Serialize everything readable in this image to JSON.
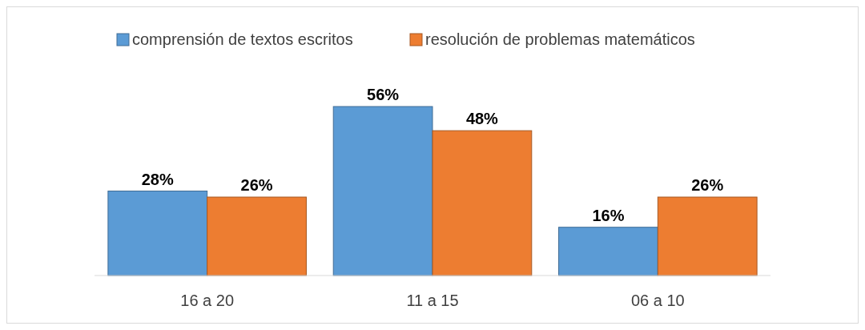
{
  "chart_data": {
    "type": "bar",
    "categories": [
      "16 a 20",
      "11 a 15",
      "06 a 10"
    ],
    "legend": "top",
    "series": [
      {
        "name": "comprensión de textos escritos",
        "color": "#5b9bd5",
        "values": [
          28,
          56,
          16
        ],
        "value_labels": [
          "28%",
          "56%",
          "16%"
        ]
      },
      {
        "name": "resolución de problemas matemáticos",
        "color": "#ed7d31",
        "values": [
          26,
          48,
          26
        ],
        "value_labels": [
          "26%",
          "48%",
          "26%"
        ]
      }
    ]
  }
}
